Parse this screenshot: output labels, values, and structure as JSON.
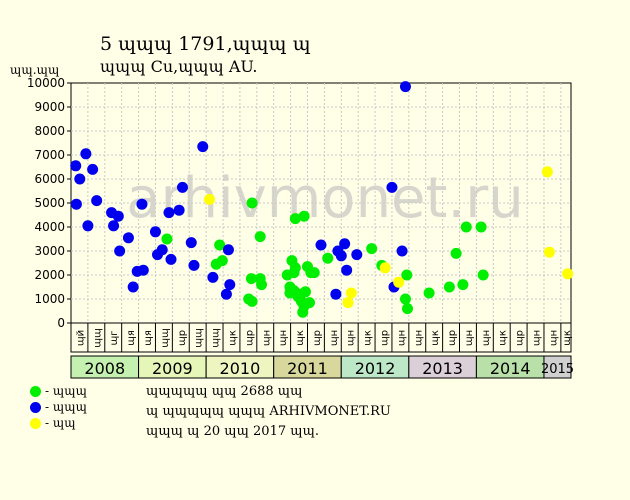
{
  "header": {
    "title": "5 ɰɰɰ 1791,ɰɰɰ ɰ",
    "subtitle": "ɰɰɰ Cu,ɰɰɰ AU."
  },
  "y_unit_label": "ɰɰ.ɰɰ",
  "watermark": "arhivmonet.ru",
  "legend": [
    {
      "label": "- ɰɰɰ",
      "color": "#00ee00"
    },
    {
      "label": "- ɰɰɰ",
      "color": "#0000ee"
    },
    {
      "label": "- ɰɰ",
      "color": "#ffff00"
    }
  ],
  "info_lines": [
    "ɰɰɰɰɰ ɰɰ 2688 ɰɰ",
    "ɰ ɰɰɰɰɰ ɰɰɰ ARHIVMONET.RU",
    "ɰɰɰ ɰ 20 ɰɰ 2017 ɰɰ."
  ],
  "chart_data": {
    "type": "scatter",
    "ylim": [
      0,
      10000
    ],
    "y_ticks": [
      0,
      1000,
      2000,
      3000,
      4000,
      5000,
      6000,
      7000,
      8000,
      9000,
      10000
    ],
    "xlim": [
      2008.0,
      2015.4
    ],
    "years": [
      {
        "label": "2008",
        "start": 2008,
        "end": 2009,
        "color": "#c4f0b0"
      },
      {
        "label": "2009",
        "start": 2009,
        "end": 2010,
        "color": "#e6f5b8"
      },
      {
        "label": "2010",
        "start": 2010,
        "end": 2011,
        "color": "#eef5c0"
      },
      {
        "label": "2011",
        "start": 2011,
        "end": 2012,
        "color": "#d8d89c"
      },
      {
        "label": "2012",
        "start": 2012,
        "end": 2013,
        "color": "#bce8c8"
      },
      {
        "label": "2013",
        "start": 2013,
        "end": 2014,
        "color": "#dcd0d8"
      },
      {
        "label": "2014",
        "start": 2014,
        "end": 2015,
        "color": "#b8e0a8"
      },
      {
        "label": "2015",
        "start": 2015,
        "end": 2015.4,
        "color": "#d0d0d0"
      }
    ],
    "quarter_labels": [
      "ɰй",
      "ɰɰ",
      "ɰг",
      "ɰя",
      "ɰя",
      "ɰɰ",
      "ɰр",
      "ɰɰ",
      "ɰɰ",
      "ɰк",
      "ɰр",
      "ɰн",
      "ɰн",
      "ɰк",
      "ɰр",
      "ɰн",
      "ɰн",
      "ɰк",
      "ɰр",
      "ɰн",
      "ɰн",
      "ɰк",
      "ɰр",
      "ɰн",
      "ɰн",
      "ɰк",
      "ɰр",
      "ɰн",
      "ɰн",
      "ɰк"
    ],
    "series": [
      {
        "color": "#00ee00",
        "points": [
          [
            2009.42,
            3500
          ],
          [
            2010.2,
            3250
          ],
          [
            2010.15,
            2450
          ],
          [
            2010.24,
            2600
          ],
          [
            2010.63,
            1000
          ],
          [
            2010.67,
            1850
          ],
          [
            2010.68,
            900
          ],
          [
            2010.68,
            5000
          ],
          [
            2010.8,
            3600
          ],
          [
            2010.8,
            1850
          ],
          [
            2010.82,
            1600
          ],
          [
            2011.2,
            2000
          ],
          [
            2011.24,
            1500
          ],
          [
            2011.24,
            1250
          ],
          [
            2011.27,
            2600
          ],
          [
            2011.3,
            1350
          ],
          [
            2011.3,
            2100
          ],
          [
            2011.32,
            2300
          ],
          [
            2011.32,
            4350
          ],
          [
            2011.36,
            1100
          ],
          [
            2011.38,
            1200
          ],
          [
            2011.41,
            900
          ],
          [
            2011.43,
            450
          ],
          [
            2011.45,
            700
          ],
          [
            2011.45,
            4450
          ],
          [
            2011.47,
            1300
          ],
          [
            2011.5,
            2350
          ],
          [
            2011.53,
            850
          ],
          [
            2011.55,
            2100
          ],
          [
            2011.6,
            2100
          ],
          [
            2011.8,
            2700
          ],
          [
            2012.45,
            3100
          ],
          [
            2012.6,
            2400
          ],
          [
            2012.95,
            1000
          ],
          [
            2012.97,
            2000
          ],
          [
            2012.98,
            600
          ],
          [
            2013.3,
            1250
          ],
          [
            2013.6,
            1500
          ],
          [
            2013.7,
            2900
          ],
          [
            2013.8,
            1600
          ],
          [
            2013.85,
            4000
          ],
          [
            2014.07,
            4000
          ],
          [
            2014.1,
            2000
          ]
        ]
      },
      {
        "color": "#0000ee",
        "points": [
          [
            2008.07,
            6550
          ],
          [
            2008.08,
            4950
          ],
          [
            2008.13,
            6000
          ],
          [
            2008.22,
            7050
          ],
          [
            2008.25,
            4050
          ],
          [
            2008.32,
            6400
          ],
          [
            2008.38,
            5100
          ],
          [
            2008.6,
            4600
          ],
          [
            2008.63,
            4050
          ],
          [
            2008.7,
            4450
          ],
          [
            2008.72,
            3000
          ],
          [
            2008.85,
            3550
          ],
          [
            2008.92,
            1500
          ],
          [
            2008.98,
            2150
          ],
          [
            2009.05,
            4950
          ],
          [
            2009.07,
            2200
          ],
          [
            2009.25,
            3800
          ],
          [
            2009.28,
            2850
          ],
          [
            2009.35,
            3050
          ],
          [
            2009.45,
            4600
          ],
          [
            2009.48,
            2650
          ],
          [
            2009.6,
            4700
          ],
          [
            2009.65,
            5650
          ],
          [
            2009.78,
            3350
          ],
          [
            2009.82,
            2400
          ],
          [
            2009.95,
            7350
          ],
          [
            2010.1,
            1900
          ],
          [
            2010.3,
            1200
          ],
          [
            2010.33,
            3050
          ],
          [
            2010.35,
            1600
          ],
          [
            2011.7,
            3250
          ],
          [
            2011.92,
            1200
          ],
          [
            2011.95,
            3000
          ],
          [
            2012.0,
            2800
          ],
          [
            2012.05,
            3300
          ],
          [
            2012.08,
            2200
          ],
          [
            2012.23,
            2850
          ],
          [
            2012.75,
            5650
          ],
          [
            2012.78,
            1500
          ],
          [
            2012.9,
            3000
          ],
          [
            2012.95,
            9850
          ]
        ]
      },
      {
        "color": "#ffff00",
        "points": [
          [
            2010.05,
            5150
          ],
          [
            2012.1,
            850
          ],
          [
            2012.15,
            1250
          ],
          [
            2012.65,
            2300
          ],
          [
            2012.85,
            1700
          ],
          [
            2015.05,
            6300
          ],
          [
            2015.08,
            2950
          ],
          [
            2015.35,
            2050
          ]
        ]
      }
    ]
  }
}
